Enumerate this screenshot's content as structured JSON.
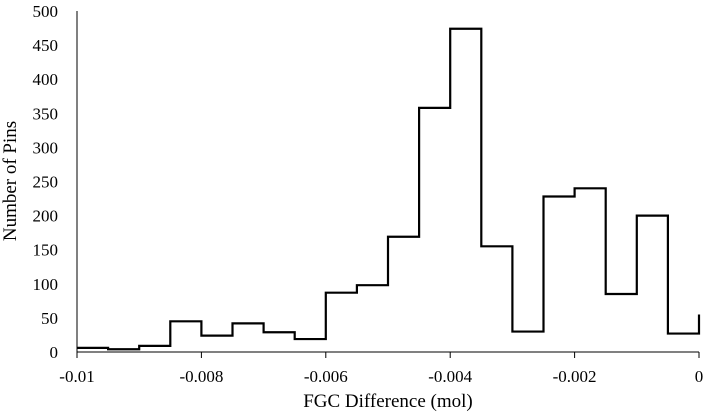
{
  "chart_data": {
    "type": "histogram",
    "title": "",
    "xlabel": "FGC Difference (mol)",
    "ylabel": "Number of Pins",
    "xlim": [
      -0.01,
      0
    ],
    "ylim": [
      0,
      500
    ],
    "xticks": [
      -0.01,
      -0.008,
      -0.006,
      -0.004,
      -0.002,
      0
    ],
    "xtick_labels": [
      "-0.01",
      "-0.008",
      "-0.006",
      "-0.004",
      "-0.002",
      "0"
    ],
    "yticks": [
      0,
      50,
      100,
      150,
      200,
      250,
      300,
      350,
      400,
      450,
      500
    ],
    "ytick_labels": [
      "0",
      "50",
      "100",
      "150",
      "200",
      "250",
      "300",
      "350",
      "400",
      "450",
      "500"
    ],
    "bin_width": 0.0005,
    "bin_starts": [
      -0.01,
      -0.0095,
      -0.009,
      -0.0085,
      -0.008,
      -0.0075,
      -0.007,
      -0.0065,
      -0.006,
      -0.0055,
      -0.005,
      -0.0045,
      -0.004,
      -0.0035,
      -0.003,
      -0.0025,
      -0.002,
      -0.0015,
      -0.001,
      -0.0005
    ],
    "values": [
      6,
      4,
      9,
      45,
      24,
      42,
      29,
      19,
      87,
      98,
      169,
      358,
      474,
      155,
      30,
      228,
      240,
      85,
      200,
      27
    ],
    "end_value": 55,
    "grid": false,
    "legend": "none",
    "line_color": "#000000"
  }
}
